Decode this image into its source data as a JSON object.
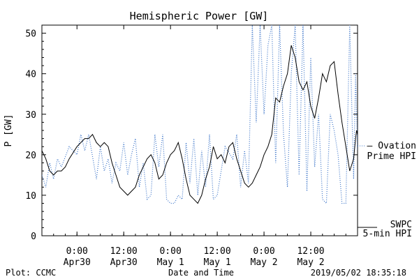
{
  "chart_data": {
    "type": "line",
    "title": "Hemispheric Power [GW]",
    "xlabel": "Date and Time",
    "ylabel": "P [GW]",
    "ylim": [
      0,
      52
    ],
    "yticks": [
      0,
      10,
      20,
      30,
      40,
      50
    ],
    "xlim": [
      "2019-04-29T15:00",
      "2019-05-03T00:00"
    ],
    "xticks": [
      {
        "t": "2019-04-30T00:00",
        "line1": "0:00",
        "line2": "Apr30"
      },
      {
        "t": "2019-04-30T12:00",
        "line1": "12:00",
        "line2": "Apr30"
      },
      {
        "t": "2019-05-01T00:00",
        "line1": "0:00",
        "line2": "May 1"
      },
      {
        "t": "2019-05-01T12:00",
        "line1": "12:00",
        "line2": "May 1"
      },
      {
        "t": "2019-05-02T00:00",
        "line1": "0:00",
        "line2": "May 2"
      },
      {
        "t": "2019-05-02T12:00",
        "line1": "12:00",
        "line2": "May 2"
      }
    ],
    "grid": false,
    "legend_position": "right",
    "series": [
      {
        "name_lines": [
          "SWPC",
          "5-min HPI"
        ],
        "color": "#000000",
        "style": "solid",
        "points": [
          [
            "2019-04-29T15:00",
            21
          ],
          [
            "2019-04-29T16:00",
            19
          ],
          [
            "2019-04-29T17:00",
            16
          ],
          [
            "2019-04-29T18:00",
            15
          ],
          [
            "2019-04-29T19:00",
            16
          ],
          [
            "2019-04-29T20:00",
            16
          ],
          [
            "2019-04-29T21:00",
            17
          ],
          [
            "2019-04-29T22:00",
            19
          ],
          [
            "2019-04-30T00:00",
            22
          ],
          [
            "2019-04-30T01:00",
            23
          ],
          [
            "2019-04-30T02:00",
            24
          ],
          [
            "2019-04-30T03:00",
            24
          ],
          [
            "2019-04-30T04:00",
            25
          ],
          [
            "2019-04-30T05:00",
            23
          ],
          [
            "2019-04-30T06:00",
            22
          ],
          [
            "2019-04-30T07:00",
            23
          ],
          [
            "2019-04-30T08:00",
            22
          ],
          [
            "2019-04-30T09:00",
            18
          ],
          [
            "2019-04-30T10:00",
            15
          ],
          [
            "2019-04-30T11:00",
            12
          ],
          [
            "2019-04-30T12:00",
            11
          ],
          [
            "2019-04-30T13:00",
            10
          ],
          [
            "2019-04-30T14:00",
            11
          ],
          [
            "2019-04-30T15:00",
            12
          ],
          [
            "2019-04-30T16:00",
            15
          ],
          [
            "2019-04-30T17:00",
            17
          ],
          [
            "2019-04-30T18:00",
            19
          ],
          [
            "2019-04-30T19:00",
            20
          ],
          [
            "2019-04-30T20:00",
            18
          ],
          [
            "2019-04-30T21:00",
            14
          ],
          [
            "2019-04-30T22:00",
            15
          ],
          [
            "2019-04-30T23:00",
            18
          ],
          [
            "2019-05-01T00:00",
            20
          ],
          [
            "2019-05-01T01:00",
            21
          ],
          [
            "2019-05-01T02:00",
            23
          ],
          [
            "2019-05-01T03:00",
            19
          ],
          [
            "2019-05-01T04:00",
            14
          ],
          [
            "2019-05-01T05:00",
            10
          ],
          [
            "2019-05-01T06:00",
            9
          ],
          [
            "2019-05-01T07:00",
            8
          ],
          [
            "2019-05-01T08:00",
            10
          ],
          [
            "2019-05-01T09:00",
            14
          ],
          [
            "2019-05-01T10:00",
            17
          ],
          [
            "2019-05-01T11:00",
            22
          ],
          [
            "2019-05-01T12:00",
            19
          ],
          [
            "2019-05-01T13:00",
            20
          ],
          [
            "2019-05-01T14:00",
            18
          ],
          [
            "2019-05-01T15:00",
            22
          ],
          [
            "2019-05-01T16:00",
            23
          ],
          [
            "2019-05-01T17:00",
            19
          ],
          [
            "2019-05-01T18:00",
            16
          ],
          [
            "2019-05-01T19:00",
            13
          ],
          [
            "2019-05-01T20:00",
            12
          ],
          [
            "2019-05-01T21:00",
            13
          ],
          [
            "2019-05-01T22:00",
            15
          ],
          [
            "2019-05-01T23:00",
            17
          ],
          [
            "2019-05-02T00:00",
            20
          ],
          [
            "2019-05-02T01:00",
            22
          ],
          [
            "2019-05-02T02:00",
            25
          ],
          [
            "2019-05-02T03:00",
            34
          ],
          [
            "2019-05-02T04:00",
            33
          ],
          [
            "2019-05-02T05:00",
            37
          ],
          [
            "2019-05-02T06:00",
            40
          ],
          [
            "2019-05-02T07:00",
            47
          ],
          [
            "2019-05-02T08:00",
            44
          ],
          [
            "2019-05-02T09:00",
            38
          ],
          [
            "2019-05-02T10:00",
            36
          ],
          [
            "2019-05-02T11:00",
            38
          ],
          [
            "2019-05-02T12:00",
            32
          ],
          [
            "2019-05-02T13:00",
            29
          ],
          [
            "2019-05-02T14:00",
            34
          ],
          [
            "2019-05-02T15:00",
            40
          ],
          [
            "2019-05-02T16:00",
            38
          ],
          [
            "2019-05-02T17:00",
            42
          ],
          [
            "2019-05-02T18:00",
            43
          ],
          [
            "2019-05-02T19:00",
            35
          ],
          [
            "2019-05-02T20:00",
            28
          ],
          [
            "2019-05-02T21:00",
            22
          ],
          [
            "2019-05-02T22:00",
            16
          ],
          [
            "2019-05-02T23:00",
            19
          ],
          [
            "2019-05-02T23:30",
            24
          ],
          [
            "2019-05-02T23:45",
            26
          ],
          [
            "2019-05-03T00:00",
            25
          ]
        ]
      },
      {
        "name_lines": [
          "— Ovation",
          "Prime HPI"
        ],
        "color": "#3a73c8",
        "style": "dotted",
        "points": [
          [
            "2019-04-29T15:00",
            15
          ],
          [
            "2019-04-29T16:00",
            12
          ],
          [
            "2019-04-29T17:00",
            18
          ],
          [
            "2019-04-29T18:00",
            14
          ],
          [
            "2019-04-29T19:00",
            19
          ],
          [
            "2019-04-29T20:00",
            17
          ],
          [
            "2019-04-29T22:00",
            22
          ],
          [
            "2019-04-30T00:00",
            20
          ],
          [
            "2019-04-30T01:00",
            25
          ],
          [
            "2019-04-30T02:00",
            21
          ],
          [
            "2019-04-30T03:00",
            25
          ],
          [
            "2019-04-30T05:00",
            14
          ],
          [
            "2019-04-30T06:00",
            22
          ],
          [
            "2019-04-30T07:00",
            16
          ],
          [
            "2019-04-30T08:00",
            19
          ],
          [
            "2019-04-30T09:00",
            13
          ],
          [
            "2019-04-30T10:00",
            18
          ],
          [
            "2019-04-30T11:00",
            16
          ],
          [
            "2019-04-30T12:00",
            23
          ],
          [
            "2019-04-30T13:00",
            15
          ],
          [
            "2019-04-30T14:00",
            20
          ],
          [
            "2019-04-30T15:00",
            24
          ],
          [
            "2019-04-30T16:00",
            12
          ],
          [
            "2019-04-30T17:00",
            18
          ],
          [
            "2019-04-30T18:00",
            9
          ],
          [
            "2019-04-30T19:00",
            10
          ],
          [
            "2019-04-30T20:00",
            25
          ],
          [
            "2019-04-30T21:00",
            17
          ],
          [
            "2019-04-30T22:00",
            25
          ],
          [
            "2019-04-30T23:00",
            9
          ],
          [
            "2019-05-01T00:00",
            8
          ],
          [
            "2019-05-01T01:00",
            8
          ],
          [
            "2019-05-01T02:00",
            10
          ],
          [
            "2019-05-01T03:00",
            9
          ],
          [
            "2019-05-01T04:00",
            23
          ],
          [
            "2019-05-01T05:00",
            13
          ],
          [
            "2019-05-01T06:00",
            24
          ],
          [
            "2019-05-01T07:00",
            10
          ],
          [
            "2019-05-01T08:00",
            21
          ],
          [
            "2019-05-01T09:00",
            12
          ],
          [
            "2019-05-01T10:00",
            25
          ],
          [
            "2019-05-01T11:00",
            9
          ],
          [
            "2019-05-01T12:00",
            10
          ],
          [
            "2019-05-01T14:00",
            22
          ],
          [
            "2019-05-01T16:00",
            19
          ],
          [
            "2019-05-01T17:00",
            25
          ],
          [
            "2019-05-01T18:00",
            12
          ],
          [
            "2019-05-01T19:00",
            21
          ],
          [
            "2019-05-01T20:00",
            13
          ],
          [
            "2019-05-01T21:00",
            52
          ],
          [
            "2019-05-01T22:00",
            28
          ],
          [
            "2019-05-01T23:00",
            52
          ],
          [
            "2019-05-02T00:00",
            30
          ],
          [
            "2019-05-02T01:00",
            47
          ],
          [
            "2019-05-02T02:00",
            52
          ],
          [
            "2019-05-02T03:00",
            18
          ],
          [
            "2019-05-02T04:00",
            52
          ],
          [
            "2019-05-02T05:00",
            25
          ],
          [
            "2019-05-02T06:00",
            12
          ],
          [
            "2019-05-02T07:00",
            40
          ],
          [
            "2019-05-02T08:00",
            52
          ],
          [
            "2019-05-02T09:00",
            15
          ],
          [
            "2019-05-02T10:00",
            52
          ],
          [
            "2019-05-02T11:00",
            11
          ],
          [
            "2019-05-02T12:00",
            44
          ],
          [
            "2019-05-02T13:00",
            17
          ],
          [
            "2019-05-02T14:00",
            30
          ],
          [
            "2019-05-02T15:00",
            9
          ],
          [
            "2019-05-02T16:00",
            8
          ],
          [
            "2019-05-02T17:00",
            30
          ],
          [
            "2019-05-02T18:00",
            26
          ],
          [
            "2019-05-02T19:00",
            20
          ],
          [
            "2019-05-02T20:00",
            8
          ],
          [
            "2019-05-02T21:00",
            8
          ],
          [
            "2019-05-02T22:00",
            52
          ],
          [
            "2019-05-02T23:00",
            14
          ],
          [
            "2019-05-02T23:30",
            40
          ],
          [
            "2019-05-03T00:00",
            21
          ]
        ]
      }
    ]
  },
  "footer": {
    "left": "Plot: CCMC",
    "center": "Date and Time",
    "right": "2019/05/02 18:35:18"
  }
}
